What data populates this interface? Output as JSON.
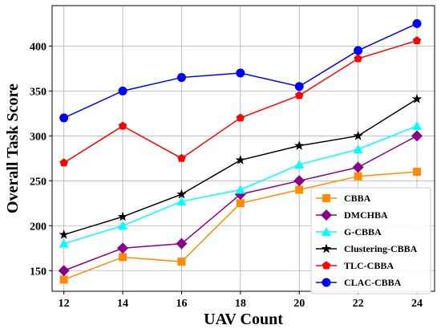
{
  "chart_data": {
    "type": "line",
    "title": "",
    "xlabel": "UAV Count",
    "ylabel": "Overall Task Score",
    "x": [
      12,
      14,
      16,
      18,
      20,
      22,
      24
    ],
    "xlim": [
      11.6,
      24.6
    ],
    "ylim": [
      127,
      445
    ],
    "xticks": [
      12,
      14,
      16,
      18,
      20,
      22,
      24
    ],
    "yticks": [
      150,
      200,
      250,
      300,
      350,
      400
    ],
    "grid": true,
    "legend_position": "lower-right",
    "series": [
      {
        "name": "CBBA",
        "color": "#ff8c00",
        "marker": "square",
        "values": [
          140,
          165,
          160,
          225,
          240,
          255,
          260
        ]
      },
      {
        "name": "DMCHBA",
        "color": "#8b008b",
        "marker": "diamond",
        "values": [
          150,
          175,
          180,
          235,
          250,
          265,
          300
        ]
      },
      {
        "name": "G-CBBA",
        "color": "#00ffff",
        "marker": "triangle",
        "values": [
          180,
          200,
          227,
          240,
          268,
          285,
          311
        ]
      },
      {
        "name": "Clustering-CBBA",
        "color": "#000000",
        "marker": "star",
        "values": [
          190,
          210,
          235,
          273,
          289,
          300,
          341
        ]
      },
      {
        "name": "TLC-CBBA",
        "color": "#ff0000",
        "marker": "pentagon",
        "values": [
          270,
          311,
          275,
          320,
          345,
          386,
          406
        ]
      },
      {
        "name": "CLAC-CBBA",
        "color": "#0000ff",
        "marker": "circle",
        "values": [
          320,
          350,
          365,
          370,
          355,
          395,
          425
        ]
      }
    ]
  }
}
